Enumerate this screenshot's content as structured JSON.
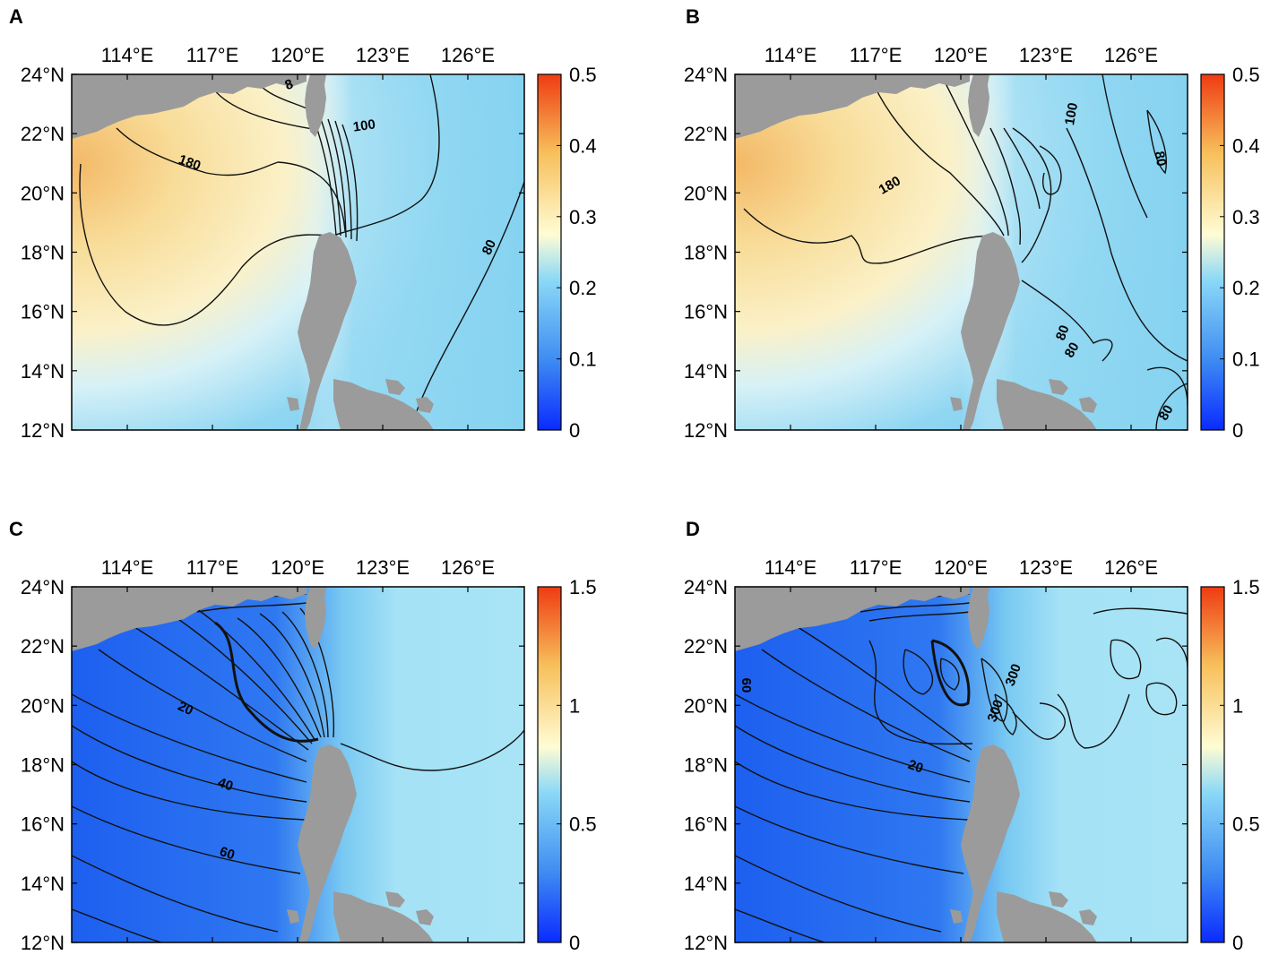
{
  "figure": {
    "panels": [
      {
        "letter": "A",
        "x_ticks": [
          "114°E",
          "117°E",
          "120°E",
          "123°E",
          "126°E"
        ],
        "y_ticks": [
          "24°N",
          "22°N",
          "20°N",
          "18°N",
          "16°N",
          "14°N",
          "12°N"
        ],
        "colorbar": {
          "ticks": [
            "0.5",
            "0.4",
            "0.3",
            "0.2",
            "0.1",
            "0"
          ],
          "range": [
            0,
            0.5
          ]
        },
        "background": "warm-west",
        "contour_labels": [
          "180",
          "100",
          "80",
          "8"
        ]
      },
      {
        "letter": "B",
        "x_ticks": [
          "114°E",
          "117°E",
          "120°E",
          "123°E",
          "126°E"
        ],
        "y_ticks": [
          "24°N",
          "22°N",
          "20°N",
          "18°N",
          "16°N",
          "14°N",
          "12°N"
        ],
        "colorbar": {
          "ticks": [
            "0.5",
            "0.4",
            "0.3",
            "0.2",
            "0.1",
            "0"
          ],
          "range": [
            0,
            0.5
          ]
        },
        "background": "warm-west",
        "contour_labels": [
          "180",
          "100",
          "80",
          "80",
          "80",
          "80"
        ]
      },
      {
        "letter": "C",
        "x_ticks": [
          "114°E",
          "117°E",
          "120°E",
          "123°E",
          "126°E"
        ],
        "y_ticks": [
          "24°N",
          "22°N",
          "20°N",
          "18°N",
          "16°N",
          "14°N",
          "12°N"
        ],
        "colorbar": {
          "ticks": [
            "1.5",
            "1",
            "0.5",
            "0"
          ],
          "range": [
            0,
            1.5
          ]
        },
        "background": "cool-west",
        "contour_labels": [
          "20",
          "40",
          "60"
        ]
      },
      {
        "letter": "D",
        "x_ticks": [
          "114°E",
          "117°E",
          "120°E",
          "123°E",
          "126°E"
        ],
        "y_ticks": [
          "24°N",
          "22°N",
          "20°N",
          "18°N",
          "16°N",
          "14°N",
          "12°N"
        ],
        "colorbar": {
          "ticks": [
            "1.5",
            "1",
            "0.5",
            "0"
          ],
          "range": [
            0,
            1.5
          ]
        },
        "background": "cool-west",
        "contour_labels": [
          "20",
          "300",
          "300",
          "60"
        ]
      }
    ],
    "land_color": "#9b9b9b",
    "colormap": [
      "#0a2bff",
      "#3f8df2",
      "#8ad8f7",
      "#fffcd4",
      "#f7bf5a",
      "#ef3b12"
    ]
  }
}
